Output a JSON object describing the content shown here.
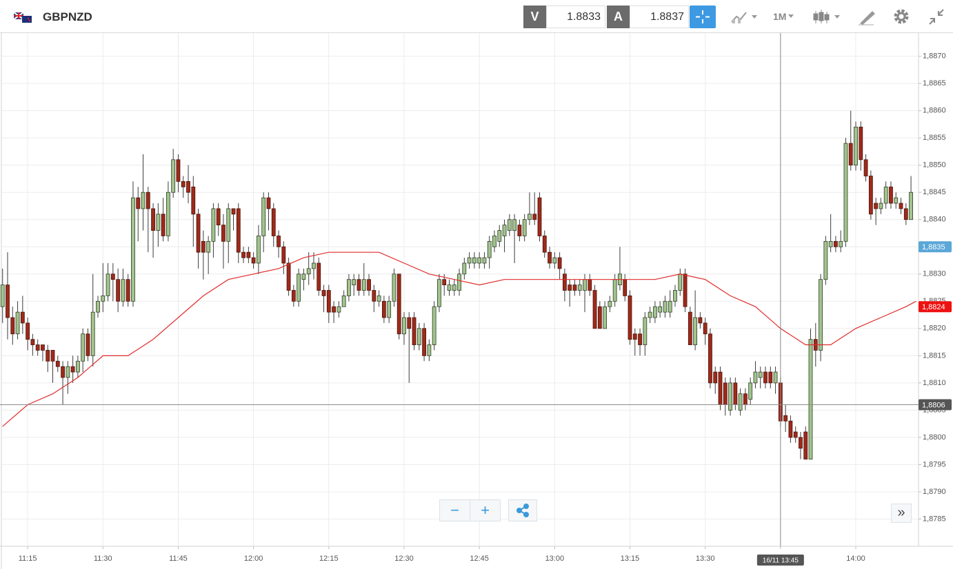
{
  "toolbar": {
    "symbol": "GBPNZD",
    "bid_label": "V",
    "bid": "1.8833",
    "ask_label": "A",
    "ask": "1.8837",
    "timeframe": "1M"
  },
  "chart_data": {
    "type": "candlestick",
    "up_color": "#a2c48e",
    "down_color": "#9e2a1b",
    "grid": true,
    "xlim": [
      669.9,
      852.5
    ],
    "xticks": [
      {
        "value": 675,
        "label": "11:15"
      },
      {
        "value": 690,
        "label": "11:30"
      },
      {
        "value": 705,
        "label": "11:45"
      },
      {
        "value": 720,
        "label": "12:00"
      },
      {
        "value": 735,
        "label": "12:15"
      },
      {
        "value": 750,
        "label": "12:30"
      },
      {
        "value": 765,
        "label": "12:45"
      },
      {
        "value": 780,
        "label": "13:00"
      },
      {
        "value": 795,
        "label": "13:15"
      },
      {
        "value": 810,
        "label": "13:30"
      },
      {
        "value": 825,
        "label": "13:45"
      },
      {
        "value": 840,
        "label": "14:00"
      }
    ],
    "ylim": [
      1.878,
      1.8874
    ],
    "yticks": [
      {
        "value": 1.8785,
        "label": "1,8785"
      },
      {
        "value": 1.879,
        "label": "1,8790"
      },
      {
        "value": 1.8795,
        "label": "1,8795"
      },
      {
        "value": 1.88,
        "label": "1,8800"
      },
      {
        "value": 1.8805,
        "label": "1,8805"
      },
      {
        "value": 1.881,
        "label": "1,8810"
      },
      {
        "value": 1.8815,
        "label": "1,8815"
      },
      {
        "value": 1.882,
        "label": "1,8820"
      },
      {
        "value": 1.8825,
        "label": "1,8825"
      },
      {
        "value": 1.883,
        "label": "1,8830"
      },
      {
        "value": 1.8835,
        "label": "1,8835"
      },
      {
        "value": 1.884,
        "label": "1,8840"
      },
      {
        "value": 1.8845,
        "label": "1,8845"
      },
      {
        "value": 1.885,
        "label": "1,8850"
      },
      {
        "value": 1.8855,
        "label": "1,8855"
      },
      {
        "value": 1.886,
        "label": "1,8860"
      },
      {
        "value": 1.8865,
        "label": "1,8865"
      },
      {
        "value": 1.887,
        "label": "1,8870"
      }
    ],
    "x": [
      670,
      671,
      672,
      673,
      674,
      675,
      676,
      677,
      678,
      679,
      680,
      681,
      682,
      683,
      684,
      685,
      686,
      687,
      688,
      689,
      690,
      691,
      692,
      693,
      694,
      695,
      696,
      697,
      698,
      699,
      700,
      701,
      702,
      703,
      704,
      705,
      706,
      707,
      708,
      709,
      710,
      711,
      712,
      713,
      714,
      715,
      716,
      717,
      718,
      719,
      720,
      721,
      722,
      723,
      724,
      725,
      726,
      727,
      728,
      729,
      730,
      731,
      732,
      733,
      734,
      735,
      736,
      737,
      738,
      739,
      740,
      741,
      742,
      743,
      744,
      745,
      746,
      747,
      748,
      749,
      750,
      751,
      752,
      753,
      754,
      755,
      756,
      757,
      758,
      759,
      760,
      761,
      762,
      763,
      764,
      765,
      766,
      767,
      768,
      769,
      770,
      771,
      772,
      773,
      774,
      775,
      776,
      777,
      778,
      779,
      780,
      781,
      782,
      783,
      784,
      785,
      786,
      787,
      788,
      789,
      790,
      791,
      792,
      793,
      794,
      795,
      796,
      797,
      798,
      799,
      800,
      801,
      802,
      803,
      804,
      805,
      806,
      807,
      808,
      809,
      810,
      811,
      812,
      813,
      814,
      815,
      816,
      817,
      818,
      819,
      820,
      821,
      822,
      823,
      824,
      825,
      826,
      827,
      828,
      829,
      830,
      831,
      832,
      833,
      834,
      835,
      836,
      837,
      838,
      839,
      840,
      841,
      842,
      843,
      844,
      845,
      846,
      847,
      848,
      849,
      850,
      851
    ],
    "open": [
      1.8824,
      1.8828,
      1.8822,
      1.8819,
      1.8823,
      1.8821,
      1.8818,
      1.8817,
      1.8817,
      1.8816,
      1.8816,
      1.8814,
      1.8813,
      1.8811,
      1.8813,
      1.8812,
      1.8814,
      1.8819,
      1.8815,
      1.8823,
      1.8825,
      1.8826,
      1.883,
      1.8829,
      1.8825,
      1.8829,
      1.8825,
      1.8844,
      1.8842,
      1.8845,
      1.8842,
      1.8838,
      1.8841,
      1.8837,
      1.8845,
      1.8851,
      1.8847,
      1.8847,
      1.8846,
      1.8841,
      1.8836,
      1.8834,
      1.8836,
      1.8842,
      1.8839,
      1.8836,
      1.8842,
      1.8842,
      1.8834,
      1.8834,
      1.8833,
      1.8832,
      1.8837,
      1.8844,
      1.8842,
      1.8837,
      1.8835,
      1.8832,
      1.8827,
      1.8825,
      1.8829,
      1.883,
      1.8831,
      1.8832,
      1.8827,
      1.8827,
      1.8824,
      1.8823,
      1.8824,
      1.8826,
      1.8828,
      1.8829,
      1.8827,
      1.8829,
      1.8827,
      1.8825,
      1.8825,
      1.8822,
      1.8825,
      1.883,
      1.8819,
      1.8822,
      1.8822,
      1.8817,
      1.882,
      1.8815,
      1.8817,
      1.8824,
      1.8829,
      1.8827,
      1.8827,
      1.8827,
      1.883,
      1.8832,
      1.8832,
      1.8832,
      1.8832,
      1.8833,
      1.8835,
      1.8836,
      1.8837,
      1.8838,
      1.8838,
      1.8839,
      1.8837,
      1.884,
      1.8841,
      1.8844,
      1.8837,
      1.8834,
      1.8832,
      1.8833,
      1.883,
      1.8828,
      1.8828,
      1.8827,
      1.8827,
      1.8829,
      1.8827,
      1.8824,
      1.882,
      1.8824,
      1.8825,
      1.8828,
      1.8829,
      1.8826,
      1.8819,
      1.8819,
      1.8817,
      1.8822,
      1.8822,
      1.8823,
      1.8823,
      1.8823,
      1.8825,
      1.8827,
      1.883,
      1.8823,
      1.8817,
      1.8822,
      1.8821,
      1.8819,
      1.8812,
      1.8812,
      1.881,
      1.8805,
      1.881,
      1.8805,
      1.8808,
      1.8807,
      1.881,
      1.8811,
      1.8812,
      1.8812,
      1.881,
      1.881,
      1.8804,
      1.8803,
      1.8801,
      1.88,
      1.8801,
      1.8796,
      1.8818,
      1.8816,
      1.8829,
      1.8835,
      1.8836,
      1.8835,
      1.8836,
      1.8854,
      1.885,
      1.8857,
      1.8851,
      1.8848,
      1.8843,
      1.8842,
      1.8843,
      1.8846,
      1.8843,
      1.8843,
      1.8842,
      1.884
    ],
    "high": [
      1.8831,
      1.8834,
      1.8824,
      1.8825,
      1.8826,
      1.8822,
      1.8819,
      1.8818,
      1.8817,
      1.8817,
      1.8816,
      1.8815,
      1.8814,
      1.8814,
      1.8815,
      1.8815,
      1.882,
      1.882,
      1.883,
      1.8826,
      1.8832,
      1.8832,
      1.8832,
      1.8831,
      1.8831,
      1.883,
      1.8847,
      1.8846,
      1.8852,
      1.8846,
      1.8843,
      1.8843,
      1.8844,
      1.8847,
      1.8853,
      1.8852,
      1.8848,
      1.885,
      1.8848,
      1.8842,
      1.8838,
      1.8837,
      1.8843,
      1.8843,
      1.8841,
      1.8843,
      1.8842,
      1.8843,
      1.8835,
      1.8835,
      1.8834,
      1.8839,
      1.8845,
      1.8845,
      1.8843,
      1.8838,
      1.8836,
      1.8833,
      1.8828,
      1.8831,
      1.8831,
      1.8834,
      1.8834,
      1.8833,
      1.8828,
      1.8828,
      1.8825,
      1.8825,
      1.8827,
      1.883,
      1.883,
      1.883,
      1.8832,
      1.883,
      1.8828,
      1.8827,
      1.8826,
      1.8826,
      1.8831,
      1.883,
      1.8823,
      1.8823,
      1.8823,
      1.8821,
      1.8821,
      1.8818,
      1.8825,
      1.883,
      1.883,
      1.8829,
      1.8829,
      1.8831,
      1.8833,
      1.8834,
      1.8834,
      1.8834,
      1.8834,
      1.8837,
      1.8838,
      1.8839,
      1.884,
      1.8841,
      1.8841,
      1.884,
      1.8841,
      1.8845,
      1.8845,
      1.8845,
      1.8838,
      1.8835,
      1.8834,
      1.8834,
      1.8831,
      1.8829,
      1.8829,
      1.8829,
      1.883,
      1.883,
      1.8828,
      1.8825,
      1.8825,
      1.8826,
      1.883,
      1.8835,
      1.883,
      1.8827,
      1.882,
      1.882,
      1.8823,
      1.8824,
      1.8825,
      1.8825,
      1.8826,
      1.8827,
      1.8828,
      1.8831,
      1.8831,
      1.8824,
      1.8827,
      1.8823,
      1.8822,
      1.882,
      1.8813,
      1.8813,
      1.8811,
      1.8811,
      1.8811,
      1.8809,
      1.8809,
      1.8811,
      1.8814,
      1.8813,
      1.8813,
      1.8813,
      1.8813,
      1.8811,
      1.8806,
      1.8804,
      1.8802,
      1.8801,
      1.8802,
      1.882,
      1.8821,
      1.883,
      1.8837,
      1.8841,
      1.8837,
      1.8838,
      1.8855,
      1.886,
      1.8858,
      1.8858,
      1.8852,
      1.8849,
      1.8844,
      1.8844,
      1.8847,
      1.8847,
      1.8845,
      1.8844,
      1.8843,
      1.8848
    ],
    "low": [
      1.8821,
      1.8818,
      1.8817,
      1.8818,
      1.8819,
      1.8816,
      1.8815,
      1.8815,
      1.8814,
      1.8812,
      1.881,
      1.8812,
      1.8806,
      1.8808,
      1.881,
      1.8811,
      1.8812,
      1.8814,
      1.8813,
      1.8822,
      1.8823,
      1.8825,
      1.8825,
      1.8823,
      1.8824,
      1.8824,
      1.8824,
      1.8836,
      1.8838,
      1.8834,
      1.8833,
      1.8835,
      1.8836,
      1.8836,
      1.8844,
      1.8845,
      1.8844,
      1.8843,
      1.8835,
      1.8831,
      1.8829,
      1.883,
      1.8833,
      1.8837,
      1.8831,
      1.8832,
      1.8838,
      1.8832,
      1.8832,
      1.8832,
      1.8831,
      1.883,
      1.8834,
      1.8838,
      1.8835,
      1.8833,
      1.883,
      1.8826,
      1.8824,
      1.8824,
      1.8827,
      1.8828,
      1.8829,
      1.8826,
      1.8823,
      1.8821,
      1.8821,
      1.8822,
      1.8824,
      1.8825,
      1.8826,
      1.8826,
      1.8826,
      1.8826,
      1.8823,
      1.8824,
      1.8821,
      1.8821,
      1.8824,
      1.8818,
      1.8817,
      1.881,
      1.8816,
      1.8816,
      1.8814,
      1.8814,
      1.8816,
      1.8823,
      1.8826,
      1.8826,
      1.8826,
      1.8826,
      1.8829,
      1.8831,
      1.8831,
      1.8831,
      1.8831,
      1.8831,
      1.8834,
      1.8835,
      1.8834,
      1.8837,
      1.8832,
      1.8836,
      1.8836,
      1.8839,
      1.8839,
      1.8836,
      1.8833,
      1.8831,
      1.8831,
      1.8829,
      1.8825,
      1.8824,
      1.8826,
      1.8826,
      1.8823,
      1.8826,
      1.882,
      1.882,
      1.882,
      1.8823,
      1.8824,
      1.8827,
      1.8825,
      1.8817,
      1.8815,
      1.8815,
      1.8815,
      1.8821,
      1.8821,
      1.8822,
      1.8822,
      1.8822,
      1.8824,
      1.8826,
      1.8823,
      1.8817,
      1.8816,
      1.882,
      1.8817,
      1.8809,
      1.8808,
      1.8805,
      1.8804,
      1.8804,
      1.8805,
      1.8804,
      1.8805,
      1.8806,
      1.8809,
      1.8809,
      1.8809,
      1.8809,
      1.8808,
      1.8802,
      1.8801,
      1.8799,
      1.8799,
      1.8796,
      1.8796,
      1.8796,
      1.8813,
      1.8814,
      1.8828,
      1.8834,
      1.8834,
      1.8834,
      1.8835,
      1.8849,
      1.8849,
      1.8849,
      1.8847,
      1.884,
      1.8839,
      1.8841,
      1.8842,
      1.8842,
      1.8842,
      1.8841,
      1.8839,
      1.884
    ],
    "close": [
      1.8828,
      1.8822,
      1.8819,
      1.8823,
      1.8821,
      1.8818,
      1.8817,
      1.8816,
      1.8816,
      1.8814,
      1.8814,
      1.8813,
      1.8811,
      1.8813,
      1.8812,
      1.8814,
      1.8819,
      1.8815,
      1.8823,
      1.8825,
      1.8826,
      1.883,
      1.8829,
      1.8825,
      1.8829,
      1.8825,
      1.8844,
      1.8842,
      1.8845,
      1.8842,
      1.8838,
      1.8841,
      1.8837,
      1.8845,
      1.8851,
      1.8847,
      1.8846,
      1.8845,
      1.8841,
      1.8834,
      1.8834,
      1.8836,
      1.8842,
      1.8839,
      1.8836,
      1.8842,
      1.8841,
      1.8834,
      1.8833,
      1.8833,
      1.8832,
      1.8837,
      1.8844,
      1.8842,
      1.8837,
      1.8835,
      1.8832,
      1.8827,
      1.8825,
      1.883,
      1.883,
      1.8831,
      1.8832,
      1.8827,
      1.8826,
      1.8823,
      1.8823,
      1.8824,
      1.8826,
      1.8829,
      1.8829,
      1.8827,
      1.8829,
      1.8827,
      1.8825,
      1.8826,
      1.8822,
      1.8825,
      1.883,
      1.8819,
      1.8822,
      1.882,
      1.8817,
      1.882,
      1.8815,
      1.8817,
      1.8824,
      1.8829,
      1.8828,
      1.8828,
      1.8828,
      1.883,
      1.8832,
      1.8833,
      1.8833,
      1.8833,
      1.8833,
      1.8836,
      1.8837,
      1.8838,
      1.8839,
      1.884,
      1.884,
      1.8837,
      1.884,
      1.8841,
      1.884,
      1.8837,
      1.8834,
      1.8832,
      1.8833,
      1.8831,
      1.8827,
      1.8827,
      1.8827,
      1.8828,
      1.8829,
      1.8827,
      1.882,
      1.882,
      1.8824,
      1.8825,
      1.8829,
      1.883,
      1.8826,
      1.8818,
      1.8818,
      1.8817,
      1.8822,
      1.8823,
      1.8824,
      1.8824,
      1.8825,
      1.8825,
      1.8827,
      1.883,
      1.8824,
      1.8817,
      1.8822,
      1.8821,
      1.8819,
      1.881,
      1.881,
      1.8806,
      1.8806,
      1.881,
      1.8806,
      1.8808,
      1.8806,
      1.881,
      1.8812,
      1.8812,
      1.881,
      1.881,
      1.8812,
      1.8803,
      1.8803,
      1.88,
      1.88,
      1.8798,
      1.8796,
      1.8818,
      1.8816,
      1.8829,
      1.8836,
      1.8836,
      1.8835,
      1.8836,
      1.8854,
      1.885,
      1.8857,
      1.8851,
      1.8848,
      1.8841,
      1.8842,
      1.8843,
      1.8846,
      1.8843,
      1.8844,
      1.8842,
      1.884,
      1.8845
    ],
    "overlay": {
      "color": "#e02b2b",
      "x": [
        670,
        675,
        680,
        685,
        690,
        695,
        700,
        705,
        710,
        715,
        720,
        725,
        730,
        735,
        740,
        745,
        750,
        755,
        760,
        765,
        770,
        775,
        780,
        785,
        790,
        795,
        800,
        805,
        810,
        815,
        820,
        825,
        830,
        835,
        840,
        845,
        850,
        852
      ],
      "values": [
        1.8802,
        1.8806,
        1.8808,
        1.8811,
        1.8815,
        1.8815,
        1.8818,
        1.8822,
        1.8826,
        1.8829,
        1.883,
        1.8831,
        1.8833,
        1.8834,
        1.8834,
        1.8834,
        1.8832,
        1.883,
        1.8829,
        1.8828,
        1.8829,
        1.8829,
        1.8829,
        1.8829,
        1.8829,
        1.8829,
        1.8829,
        1.883,
        1.8829,
        1.8826,
        1.8824,
        1.882,
        1.8817,
        1.8817,
        1.882,
        1.8822,
        1.8824,
        1.8825
      ]
    },
    "crosshair": {
      "x": 825,
      "x_label": "16/11 13:45",
      "y": 1.8806,
      "y_label": "1,8806"
    },
    "markers": [
      {
        "value": 1.8835,
        "label": "1,8835",
        "color": "#5aa7d8"
      },
      {
        "value": 1.8824,
        "label": "1,8824",
        "color": "#ee1111"
      }
    ]
  }
}
